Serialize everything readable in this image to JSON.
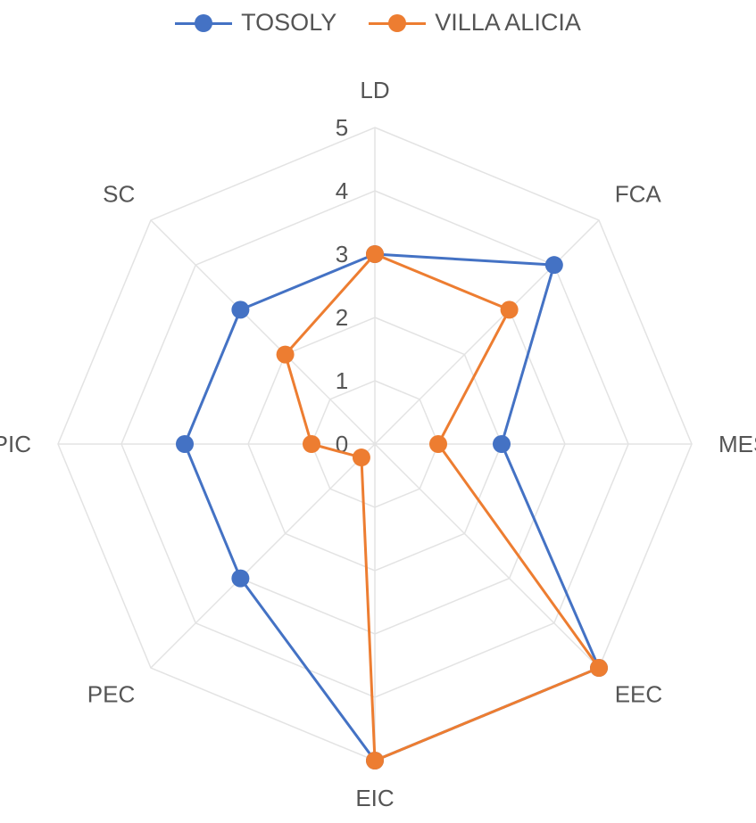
{
  "chart_data": {
    "type": "radar",
    "categories": [
      "LD",
      "FCA",
      "MES",
      "EEC",
      "EIC",
      "PEC",
      "PIC",
      "SC"
    ],
    "rticks": [
      "0",
      "1",
      "2",
      "3",
      "4",
      "5"
    ],
    "rlim": [
      0,
      5
    ],
    "series": [
      {
        "name": "TOSOLY",
        "color": "#4472C4",
        "values": [
          3,
          4,
          2,
          5,
          5,
          3,
          3,
          3
        ]
      },
      {
        "name": "VILLA ALICIA",
        "color": "#ED7D31",
        "values": [
          3,
          3,
          1,
          5,
          5,
          0.3,
          1,
          2
        ]
      }
    ],
    "grid": true,
    "legend_position": "top"
  }
}
